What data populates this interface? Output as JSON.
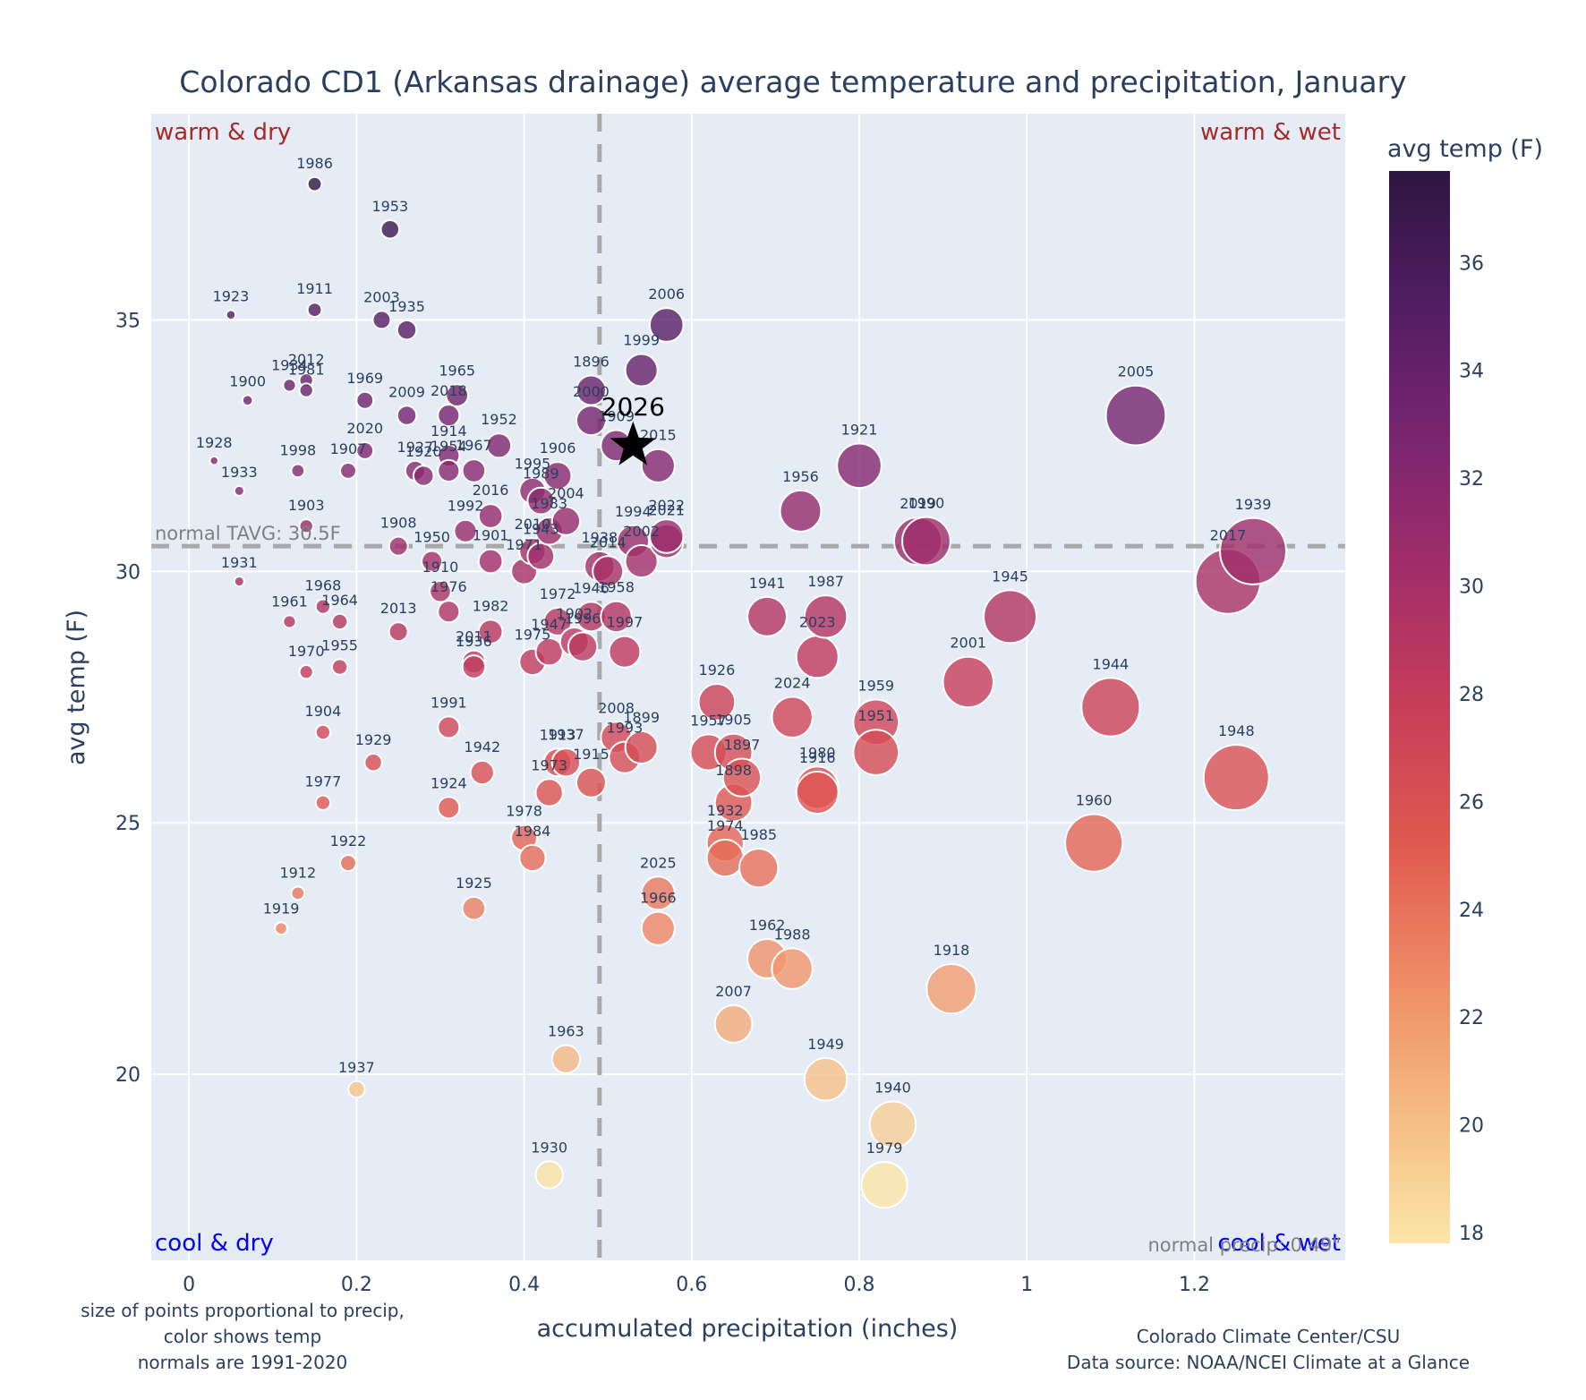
{
  "chart_data": {
    "type": "scatter",
    "title": "Colorado CD1 (Arkansas drainage) average temperature and precipitation, January",
    "xlabel": "accumulated precipitation (inches)",
    "ylabel": "avg temp (F)",
    "xlim": [
      -0.045,
      1.38
    ],
    "ylim": [
      16.3,
      39.1
    ],
    "xticks": [
      0,
      0.2,
      0.4,
      0.6,
      0.8,
      1,
      1.2
    ],
    "xtick_labels": [
      "0",
      "0.2",
      "0.4",
      "0.6",
      "0.8",
      "1",
      "1.2"
    ],
    "yticks": [
      20,
      25,
      30,
      35
    ],
    "ytick_labels": [
      "20",
      "25",
      "30",
      "35"
    ],
    "grid": true,
    "colorbar": {
      "title": "avg temp (F)",
      "range": [
        17.8,
        37.7
      ],
      "ticks": [
        18,
        20,
        22,
        24,
        26,
        28,
        30,
        32,
        34,
        36
      ],
      "colorscale": [
        "#fbe6a8",
        "#f5b983",
        "#ee8a65",
        "#e0584f",
        "#c73e5a",
        "#a32e69",
        "#7a2570",
        "#521d63",
        "#2e1641"
      ]
    },
    "normals": {
      "precip": 0.49,
      "temp": 30.5,
      "precip_label": "normal precip: 0.49\"",
      "temp_label": "normal TAVG: 30.5F"
    },
    "quadrant_labels": {
      "top_left": "warm & dry",
      "top_right": "warm & wet",
      "bottom_left": "cool & dry",
      "bottom_right": "cool & wet"
    },
    "highlight": {
      "year": "2026",
      "precip": 0.53,
      "temp": 32.5
    },
    "points": [
      {
        "year": "1986",
        "precip": 0.15,
        "temp": 37.7
      },
      {
        "year": "1953",
        "precip": 0.24,
        "temp": 36.8
      },
      {
        "year": "1923",
        "precip": 0.05,
        "temp": 35.1
      },
      {
        "year": "1911",
        "precip": 0.15,
        "temp": 35.2
      },
      {
        "year": "2003",
        "precip": 0.23,
        "temp": 35.0
      },
      {
        "year": "1935",
        "precip": 0.26,
        "temp": 34.8
      },
      {
        "year": "2006",
        "precip": 0.57,
        "temp": 34.9
      },
      {
        "year": "1999",
        "precip": 0.54,
        "temp": 34.0
      },
      {
        "year": "1900",
        "precip": 0.07,
        "temp": 33.4
      },
      {
        "year": "1934",
        "precip": 0.12,
        "temp": 33.7
      },
      {
        "year": "2012",
        "precip": 0.14,
        "temp": 33.8
      },
      {
        "year": "1981",
        "precip": 0.14,
        "temp": 33.6
      },
      {
        "year": "1969",
        "precip": 0.21,
        "temp": 33.4
      },
      {
        "year": "2009",
        "precip": 0.26,
        "temp": 33.1
      },
      {
        "year": "2018",
        "precip": 0.31,
        "temp": 33.1
      },
      {
        "year": "1965",
        "precip": 0.32,
        "temp": 33.5
      },
      {
        "year": "1896",
        "precip": 0.48,
        "temp": 33.6
      },
      {
        "year": "2000",
        "precip": 0.48,
        "temp": 33.0
      },
      {
        "year": "1909",
        "precip": 0.51,
        "temp": 32.5
      },
      {
        "year": "2015",
        "precip": 0.56,
        "temp": 32.1
      },
      {
        "year": "2005",
        "precip": 1.13,
        "temp": 33.1
      },
      {
        "year": "1928",
        "precip": 0.03,
        "temp": 32.2
      },
      {
        "year": "1933",
        "precip": 0.06,
        "temp": 31.6
      },
      {
        "year": "1998",
        "precip": 0.13,
        "temp": 32.0
      },
      {
        "year": "1907",
        "precip": 0.19,
        "temp": 32.0
      },
      {
        "year": "2020",
        "precip": 0.21,
        "temp": 32.4
      },
      {
        "year": "1914",
        "precip": 0.31,
        "temp": 32.3
      },
      {
        "year": "1927",
        "precip": 0.27,
        "temp": 32.0
      },
      {
        "year": "1920",
        "precip": 0.28,
        "temp": 31.9
      },
      {
        "year": "1954",
        "precip": 0.31,
        "temp": 32.0
      },
      {
        "year": "1967",
        "precip": 0.34,
        "temp": 32.0
      },
      {
        "year": "1952",
        "precip": 0.37,
        "temp": 32.5
      },
      {
        "year": "1906",
        "precip": 0.44,
        "temp": 31.9
      },
      {
        "year": "1995",
        "precip": 0.41,
        "temp": 31.6
      },
      {
        "year": "1989",
        "precip": 0.42,
        "temp": 31.4
      },
      {
        "year": "2004",
        "precip": 0.45,
        "temp": 31.0
      },
      {
        "year": "1983",
        "precip": 0.43,
        "temp": 30.8
      },
      {
        "year": "2016",
        "precip": 0.36,
        "temp": 31.1
      },
      {
        "year": "1903",
        "precip": 0.14,
        "temp": 30.9
      },
      {
        "year": "1992",
        "precip": 0.33,
        "temp": 30.8
      },
      {
        "year": "1908",
        "precip": 0.25,
        "temp": 30.5
      },
      {
        "year": "1950",
        "precip": 0.29,
        "temp": 30.2
      },
      {
        "year": "1901",
        "precip": 0.36,
        "temp": 30.2
      },
      {
        "year": "2010",
        "precip": 0.41,
        "temp": 30.4
      },
      {
        "year": "1943",
        "precip": 0.42,
        "temp": 30.3
      },
      {
        "year": "1971",
        "precip": 0.4,
        "temp": 30.0
      },
      {
        "year": "1938",
        "precip": 0.49,
        "temp": 30.1
      },
      {
        "year": "2014",
        "precip": 0.5,
        "temp": 30.0
      },
      {
        "year": "1994",
        "precip": 0.53,
        "temp": 30.6
      },
      {
        "year": "2002",
        "precip": 0.54,
        "temp": 30.2
      },
      {
        "year": "2021",
        "precip": 0.57,
        "temp": 30.6
      },
      {
        "year": "2022",
        "precip": 0.57,
        "temp": 30.7
      },
      {
        "year": "1956",
        "precip": 0.73,
        "temp": 31.2
      },
      {
        "year": "1921",
        "precip": 0.8,
        "temp": 32.1
      },
      {
        "year": "2019",
        "precip": 0.87,
        "temp": 30.6
      },
      {
        "year": "1990",
        "precip": 0.88,
        "temp": 30.6
      },
      {
        "year": "1939",
        "precip": 1.27,
        "temp": 30.4
      },
      {
        "year": "2017",
        "precip": 1.24,
        "temp": 29.8
      },
      {
        "year": "1931",
        "precip": 0.06,
        "temp": 29.8
      },
      {
        "year": "1910",
        "precip": 0.3,
        "temp": 29.6
      },
      {
        "year": "1976",
        "precip": 0.31,
        "temp": 29.2
      },
      {
        "year": "1968",
        "precip": 0.16,
        "temp": 29.3
      },
      {
        "year": "1961",
        "precip": 0.12,
        "temp": 29.0
      },
      {
        "year": "1964",
        "precip": 0.18,
        "temp": 29.0
      },
      {
        "year": "2013",
        "precip": 0.25,
        "temp": 28.8
      },
      {
        "year": "1982",
        "precip": 0.36,
        "temp": 28.8
      },
      {
        "year": "1972",
        "precip": 0.44,
        "temp": 29.0
      },
      {
        "year": "1946",
        "precip": 0.48,
        "temp": 29.1
      },
      {
        "year": "1958",
        "precip": 0.51,
        "temp": 29.1
      },
      {
        "year": "1941",
        "precip": 0.69,
        "temp": 29.1
      },
      {
        "year": "1987",
        "precip": 0.76,
        "temp": 29.1
      },
      {
        "year": "1945",
        "precip": 0.98,
        "temp": 29.1
      },
      {
        "year": "1970",
        "precip": 0.14,
        "temp": 28.0
      },
      {
        "year": "1955",
        "precip": 0.18,
        "temp": 28.1
      },
      {
        "year": "2011",
        "precip": 0.34,
        "temp": 28.2
      },
      {
        "year": "1936",
        "precip": 0.34,
        "temp": 28.1
      },
      {
        "year": "1975",
        "precip": 0.41,
        "temp": 28.2
      },
      {
        "year": "1947",
        "precip": 0.43,
        "temp": 28.4
      },
      {
        "year": "1902",
        "precip": 0.46,
        "temp": 28.6
      },
      {
        "year": "1996",
        "precip": 0.47,
        "temp": 28.5
      },
      {
        "year": "1997",
        "precip": 0.52,
        "temp": 28.4
      },
      {
        "year": "2023",
        "precip": 0.75,
        "temp": 28.3
      },
      {
        "year": "2001",
        "precip": 0.93,
        "temp": 27.8
      },
      {
        "year": "1944",
        "precip": 1.1,
        "temp": 27.3
      },
      {
        "year": "1926",
        "precip": 0.63,
        "temp": 27.4
      },
      {
        "year": "2024",
        "precip": 0.72,
        "temp": 27.1
      },
      {
        "year": "1959",
        "precip": 0.82,
        "temp": 27.0
      },
      {
        "year": "1951",
        "precip": 0.82,
        "temp": 26.4
      },
      {
        "year": "1904",
        "precip": 0.16,
        "temp": 26.8
      },
      {
        "year": "1991",
        "precip": 0.31,
        "temp": 26.9
      },
      {
        "year": "1929",
        "precip": 0.22,
        "temp": 26.2
      },
      {
        "year": "1942",
        "precip": 0.35,
        "temp": 26.0
      },
      {
        "year": "2008",
        "precip": 0.51,
        "temp": 26.7
      },
      {
        "year": "1899",
        "precip": 0.54,
        "temp": 26.5
      },
      {
        "year": "1993",
        "precip": 0.52,
        "temp": 26.3
      },
      {
        "year": "1957",
        "precip": 0.62,
        "temp": 26.4
      },
      {
        "year": "1905",
        "precip": 0.65,
        "temp": 26.4
      },
      {
        "year": "1913",
        "precip": 0.44,
        "temp": 26.2
      },
      {
        "year": "1937",
        "precip": 0.45,
        "temp": 26.2
      },
      {
        "year": "1915",
        "precip": 0.48,
        "temp": 25.8
      },
      {
        "year": "1973",
        "precip": 0.43,
        "temp": 25.6
      },
      {
        "year": "1897",
        "precip": 0.66,
        "temp": 25.9
      },
      {
        "year": "1898",
        "precip": 0.65,
        "temp": 25.4
      },
      {
        "year": "1980",
        "precip": 0.75,
        "temp": 25.7
      },
      {
        "year": "1916",
        "precip": 0.75,
        "temp": 25.6
      },
      {
        "year": "1948",
        "precip": 1.25,
        "temp": 25.9
      },
      {
        "year": "1977",
        "precip": 0.16,
        "temp": 25.4
      },
      {
        "year": "1924",
        "precip": 0.31,
        "temp": 25.3
      },
      {
        "year": "1978",
        "precip": 0.4,
        "temp": 24.7
      },
      {
        "year": "1984",
        "precip": 0.41,
        "temp": 24.3
      },
      {
        "year": "1932",
        "precip": 0.64,
        "temp": 24.6
      },
      {
        "year": "1974",
        "precip": 0.64,
        "temp": 24.3
      },
      {
        "year": "1985",
        "precip": 0.68,
        "temp": 24.1
      },
      {
        "year": "1960",
        "precip": 1.08,
        "temp": 24.6
      },
      {
        "year": "1922",
        "precip": 0.19,
        "temp": 24.2
      },
      {
        "year": "1912",
        "precip": 0.13,
        "temp": 23.6
      },
      {
        "year": "1919",
        "precip": 0.11,
        "temp": 22.9
      },
      {
        "year": "1925",
        "precip": 0.34,
        "temp": 23.3
      },
      {
        "year": "2025",
        "precip": 0.56,
        "temp": 23.6
      },
      {
        "year": "1966",
        "precip": 0.56,
        "temp": 22.9
      },
      {
        "year": "1962",
        "precip": 0.69,
        "temp": 22.3
      },
      {
        "year": "1988",
        "precip": 0.72,
        "temp": 22.1
      },
      {
        "year": "1918",
        "precip": 0.91,
        "temp": 21.7
      },
      {
        "year": "2007",
        "precip": 0.65,
        "temp": 21.0
      },
      {
        "year": "1963",
        "precip": 0.45,
        "temp": 20.3
      },
      {
        "year": "1949",
        "precip": 0.76,
        "temp": 19.9
      },
      {
        "year": "1937b",
        "precip": 0.2,
        "temp": 19.7
      },
      {
        "year": "1940",
        "precip": 0.84,
        "temp": 19.0
      },
      {
        "year": "1930",
        "precip": 0.43,
        "temp": 18.0
      },
      {
        "year": "1979",
        "precip": 0.83,
        "temp": 17.8
      }
    ],
    "footnote_left": [
      "size of points proportional to precip,",
      "color shows temp",
      "normals are 1991-2020"
    ],
    "footnote_right": [
      "Colorado Climate Center/CSU",
      "Data source: NOAA/NCEI Climate at a Glance"
    ]
  }
}
